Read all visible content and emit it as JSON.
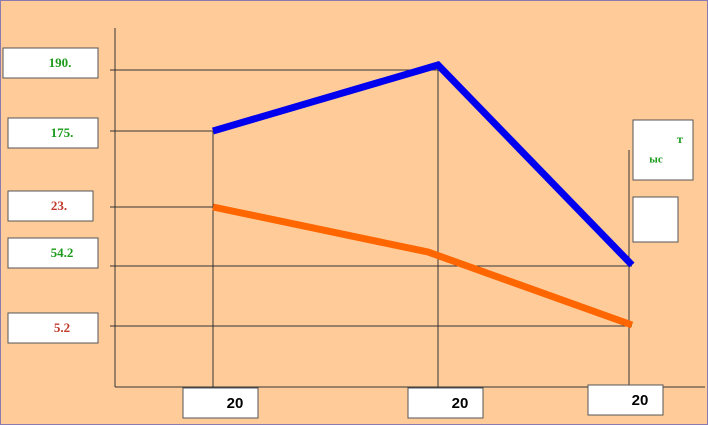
{
  "value_labels": [
    {
      "text": "190.",
      "color": "#1a9a1a"
    },
    {
      "text": "175.",
      "color": "#1a9a1a"
    },
    {
      "text": "23.",
      "color": "#c0392b"
    },
    {
      "text": "54.2",
      "color": "#1a9a1a"
    },
    {
      "text": "5.2",
      "color": "#c0392b"
    }
  ],
  "x_labels": [
    "20",
    "20",
    "20"
  ],
  "side_labels": [
    "т",
    "ыс"
  ]
}
